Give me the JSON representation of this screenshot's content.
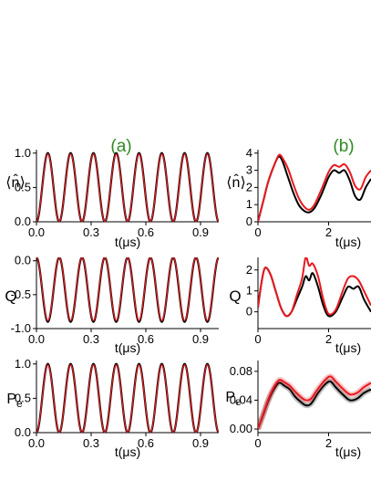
{
  "panel_labels": {
    "a": "(a)",
    "b": "(b)"
  },
  "label_color": "#2e8b22",
  "colors": {
    "black": "#000000",
    "red": "#e8191e"
  },
  "axis_text": {
    "t_label": "t(μs)",
    "n_label": "⟨n̂⟩",
    "q_label": "Q",
    "pe_label": "Pe"
  },
  "chart_data": [
    {
      "type": "line",
      "panel": "(a)",
      "row": "n",
      "xlim": [
        0,
        1
      ],
      "ylim": [
        0,
        1.05
      ],
      "xticks": [
        0.0,
        0.3,
        0.6,
        0.9
      ],
      "yticks": [
        0.0,
        0.5,
        1.0
      ],
      "xtick_labels": [
        "0.0",
        "0.3",
        "0.6",
        "0.9"
      ],
      "ytick_labels": [
        "0.0",
        "0.5",
        "1.0"
      ],
      "ylabel": "⟨n̂⟩",
      "xlabel": "t(μs)",
      "model": {
        "form": "cos2",
        "amplitude": 1.0,
        "frequency_per_us": 8.0,
        "offset": 0.0
      },
      "series": [
        {
          "color": "#000000",
          "values_note": "black"
        },
        {
          "color": "#e8191e",
          "values_note": "red"
        }
      ]
    },
    {
      "type": "line",
      "panel": "(a)",
      "row": "q",
      "xlim": [
        0,
        1
      ],
      "ylim": [
        -1.0,
        0.05
      ],
      "xticks": [
        0.0,
        0.3,
        0.6,
        0.9
      ],
      "yticks": [
        -1.0,
        -0.5,
        0.0
      ],
      "xtick_labels": [
        "0.0",
        "0.3",
        "0.6",
        "0.9"
      ],
      "ytick_labels": [
        "-1.0",
        "-0.5",
        "0.0"
      ],
      "ylabel": "Q",
      "xlabel": "t(μs)",
      "model": {
        "form": "neg_sin2",
        "amplitude": 0.95,
        "frequency_per_us": 8.0,
        "offset": 0.05
      }
    },
    {
      "type": "line",
      "panel": "(a)",
      "row": "pe",
      "xlim": [
        0,
        1
      ],
      "ylim": [
        0,
        1.05
      ],
      "xticks": [
        0.0,
        0.3,
        0.6,
        0.9
      ],
      "yticks": [
        0.0,
        0.5,
        1.0
      ],
      "xtick_labels": [
        "0.0",
        "0.3",
        "0.6",
        "0.9"
      ],
      "ytick_labels": [
        "0.0",
        "0.5",
        "1.0"
      ],
      "ylabel": "Pe",
      "xlabel": "t(μs)",
      "model": {
        "form": "cos2",
        "amplitude": 1.0,
        "frequency_per_us": 8.0,
        "offset": 0.0
      }
    },
    {
      "type": "line",
      "panel": "(b)",
      "row": "n",
      "xlim": [
        0,
        3.2
      ],
      "ylim": [
        0,
        4.2
      ],
      "xticks": [
        0,
        2
      ],
      "yticks": [
        0,
        1,
        2,
        3,
        4
      ],
      "xtick_labels": [
        "0",
        "2"
      ],
      "ytick_labels": [
        "0",
        "1",
        "2",
        "3",
        "4"
      ],
      "ylabel": "⟨n̂⟩",
      "xlabel": "t(μs)",
      "series": [
        {
          "name": "",
          "color": "#000000",
          "x": [
            0,
            0.15,
            0.3,
            0.5,
            0.6,
            0.7,
            0.85,
            1.0,
            1.15,
            1.3,
            1.45,
            1.6,
            1.8,
            2.0,
            2.15,
            2.3,
            2.45,
            2.6,
            2.75,
            2.9,
            3.05,
            3.2
          ],
          "y": [
            0,
            1.2,
            2.4,
            3.5,
            3.8,
            3.5,
            2.6,
            1.7,
            1.0,
            0.65,
            0.55,
            0.8,
            1.6,
            2.6,
            3.0,
            2.85,
            3.0,
            2.4,
            1.5,
            1.3,
            2.0,
            2.5
          ]
        },
        {
          "name": "",
          "color": "#e8191e",
          "x": [
            0,
            0.15,
            0.3,
            0.5,
            0.6,
            0.7,
            0.85,
            1.0,
            1.15,
            1.3,
            1.45,
            1.6,
            1.8,
            2.0,
            2.15,
            2.3,
            2.45,
            2.6,
            2.75,
            2.9,
            3.05,
            3.2
          ],
          "y": [
            0,
            1.2,
            2.4,
            3.5,
            3.9,
            3.7,
            3.1,
            2.2,
            1.4,
            0.9,
            0.7,
            1.0,
            1.9,
            2.9,
            3.3,
            3.2,
            3.35,
            2.9,
            2.1,
            1.9,
            2.6,
            3.0
          ]
        }
      ]
    },
    {
      "type": "line",
      "panel": "(b)",
      "row": "q",
      "xlim": [
        0,
        3.2
      ],
      "ylim": [
        -0.8,
        2.6
      ],
      "xticks": [
        0,
        2
      ],
      "yticks": [
        0,
        1,
        2
      ],
      "xtick_labels": [
        "0",
        "2"
      ],
      "ytick_labels": [
        "0",
        "1",
        "2"
      ],
      "ylabel": "Q",
      "xlabel": "t(μs)",
      "series": [
        {
          "name": "",
          "color": "#000000",
          "x": [
            0,
            0.1,
            0.2,
            0.35,
            0.5,
            0.65,
            0.8,
            0.95,
            1.1,
            1.25,
            1.35,
            1.45,
            1.55,
            1.7,
            1.85,
            2.0,
            2.2,
            2.4,
            2.55,
            2.7,
            2.85,
            3.0,
            3.2
          ],
          "y": [
            0.2,
            1.4,
            2.1,
            1.8,
            1.0,
            0.2,
            -0.2,
            0.0,
            0.6,
            1.2,
            1.7,
            1.5,
            1.85,
            1.2,
            0.3,
            -0.2,
            0.0,
            0.7,
            1.2,
            1.1,
            1.2,
            0.6,
            0.0
          ]
        },
        {
          "name": "",
          "color": "#e8191e",
          "x": [
            0,
            0.1,
            0.2,
            0.35,
            0.5,
            0.65,
            0.8,
            0.95,
            1.1,
            1.25,
            1.35,
            1.45,
            1.55,
            1.7,
            1.85,
            2.0,
            2.2,
            2.4,
            2.55,
            2.7,
            2.85,
            3.0,
            3.2
          ],
          "y": [
            0.2,
            1.4,
            2.1,
            1.8,
            1.0,
            0.2,
            -0.2,
            0.0,
            0.8,
            1.6,
            2.6,
            2.2,
            2.3,
            1.7,
            0.6,
            -0.1,
            0.1,
            1.0,
            1.6,
            1.7,
            1.5,
            1.0,
            0.3
          ]
        }
      ]
    },
    {
      "type": "line",
      "panel": "(b)",
      "row": "pe",
      "xlim": [
        0,
        3.2
      ],
      "ylim": [
        -0.005,
        0.095
      ],
      "xticks": [
        0,
        2
      ],
      "yticks": [
        0.0,
        0.04,
        0.08
      ],
      "xtick_labels": [
        "0",
        "2"
      ],
      "ytick_labels": [
        "0.00",
        "0.04",
        "0.08"
      ],
      "ylabel": "Pe",
      "xlabel": "t(μs)",
      "series": [
        {
          "name": "",
          "color": "#000000",
          "x": [
            0,
            0.15,
            0.3,
            0.45,
            0.6,
            0.75,
            0.9,
            1.05,
            1.2,
            1.35,
            1.5,
            1.7,
            1.9,
            2.05,
            2.2,
            2.4,
            2.6,
            2.8,
            3.0,
            3.2
          ],
          "y": [
            0.0,
            0.02,
            0.04,
            0.055,
            0.064,
            0.06,
            0.055,
            0.045,
            0.038,
            0.033,
            0.035,
            0.05,
            0.062,
            0.066,
            0.058,
            0.048,
            0.04,
            0.042,
            0.05,
            0.055
          ]
        },
        {
          "name": "",
          "color": "#e8191e",
          "x": [
            0,
            0.15,
            0.3,
            0.45,
            0.6,
            0.75,
            0.9,
            1.05,
            1.2,
            1.35,
            1.5,
            1.7,
            1.9,
            2.05,
            2.2,
            2.4,
            2.6,
            2.8,
            3.0,
            3.2
          ],
          "y": [
            0.0,
            0.021,
            0.042,
            0.058,
            0.068,
            0.065,
            0.06,
            0.052,
            0.045,
            0.04,
            0.042,
            0.056,
            0.068,
            0.073,
            0.066,
            0.056,
            0.048,
            0.05,
            0.058,
            0.064
          ]
        }
      ]
    }
  ]
}
